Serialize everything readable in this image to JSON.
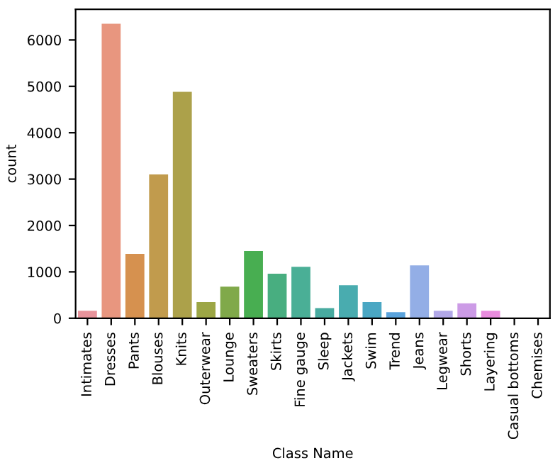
{
  "chart_data": {
    "type": "bar",
    "xlabel": "Class Name",
    "ylabel": "count",
    "categories": [
      "Intimates",
      "Dresses",
      "Pants",
      "Blouses",
      "Knits",
      "Outerwear",
      "Lounge",
      "Sweaters",
      "Skirts",
      "Fine gauge",
      "Sleep",
      "Jackets",
      "Swim",
      "Trend",
      "Jeans",
      "Legwear",
      "Shorts",
      "Layering",
      "Casual bottoms",
      "Chemises"
    ],
    "values": [
      160,
      6350,
      1390,
      3100,
      4880,
      350,
      680,
      1450,
      960,
      1110,
      220,
      710,
      350,
      130,
      1140,
      160,
      320,
      160,
      0,
      0
    ],
    "colors": [
      "#e8939b",
      "#e8967f",
      "#d6914f",
      "#c19b4d",
      "#aca14a",
      "#9ca645",
      "#80a94a",
      "#48ae51",
      "#48ae80",
      "#4aaf96",
      "#48aba0",
      "#49acaf",
      "#4aa7c3",
      "#5aa3dc",
      "#93aee6",
      "#b2a8e8",
      "#cc9be6",
      "#e98bde",
      "#e88fb7",
      "#e891a8"
    ],
    "ylim": [
      0,
      6660
    ],
    "yticks": [
      0,
      1000,
      2000,
      3000,
      4000,
      5000,
      6000
    ],
    "grid": false
  }
}
